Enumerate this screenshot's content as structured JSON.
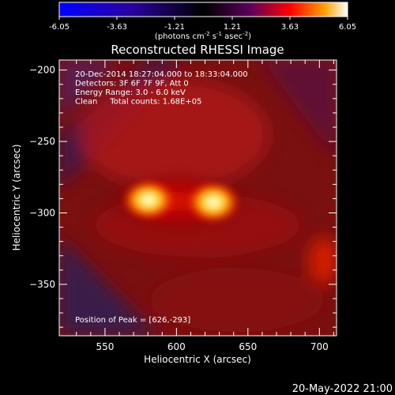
{
  "colorbar": {
    "ticks": [
      "-6.05",
      "-3.63",
      "-1.21",
      "1.21",
      "3.63",
      "6.05"
    ],
    "unit_parts": [
      "(photons cm",
      "-2",
      " s",
      "-1",
      " asec",
      "-2",
      ")"
    ],
    "colors": [
      "#0000ff",
      "#2a00a0",
      "#000000",
      "#5a005a",
      "#ff0000",
      "#ffa000",
      "#ffffff"
    ]
  },
  "chart_data": {
    "type": "heatmap",
    "title": "Reconstructed RHESSI Image",
    "xlabel": "Heliocentric X (arcsec)",
    "ylabel": "Heliocentric Y (arcsec)",
    "xlim": [
      518,
      712
    ],
    "ylim": [
      -386,
      -193
    ],
    "x_ticks": [
      550,
      600,
      650,
      700
    ],
    "y_ticks": [
      -200,
      -250,
      -300,
      -350
    ],
    "x_tick_labels": [
      "550",
      "600",
      "650",
      "700"
    ],
    "y_tick_labels": [
      "−200",
      "−250",
      "−300",
      "−350"
    ],
    "annotations": [
      "20-Dec-2014 18:27:04.000 to 18:33:04.000",
      "Detectors: 3F 6F 7F 9F, Att 0",
      "Energy Range: 3.0 - 6.0 keV",
      "Clean     Total counts: 1.68E+05"
    ],
    "peak_label": "Position of Peak = [626,-293]",
    "peaks": [
      {
        "x": 626,
        "y": -293,
        "value": 6.05
      },
      {
        "x": 580,
        "y": -292,
        "value": 5.0
      }
    ]
  },
  "footer": {
    "timestamp": "20-May-2022 21:00"
  }
}
